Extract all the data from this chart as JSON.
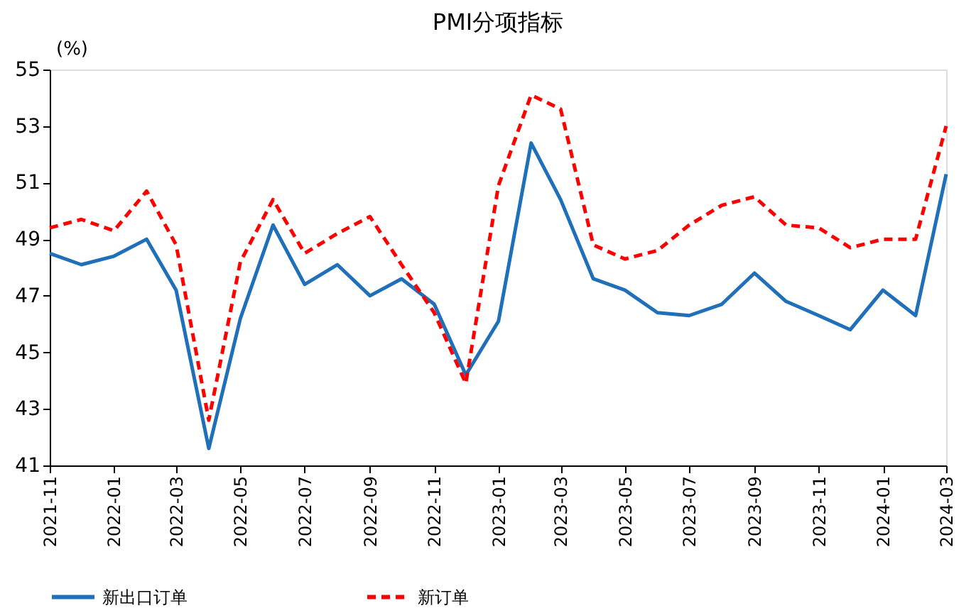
{
  "chart_data": {
    "type": "line",
    "title": "PMI分项指标",
    "ylabel": "(%)",
    "x": [
      "2021-11",
      "2021-12",
      "2022-01",
      "2022-02",
      "2022-03",
      "2022-04",
      "2022-05",
      "2022-06",
      "2022-07",
      "2022-08",
      "2022-09",
      "2022-10",
      "2022-11",
      "2022-12",
      "2023-01",
      "2023-02",
      "2023-03",
      "2023-04",
      "2023-05",
      "2023-06",
      "2023-07",
      "2023-08",
      "2023-09",
      "2023-10",
      "2023-11",
      "2023-12",
      "2024-01",
      "2024-02",
      "2024-03"
    ],
    "series": [
      {
        "name": "新出口订单",
        "color": "#1f70b8",
        "line_style": "solid",
        "values": [
          48.5,
          48.1,
          48.4,
          49.0,
          47.2,
          41.6,
          46.2,
          49.5,
          47.4,
          48.1,
          47.0,
          47.6,
          46.7,
          44.2,
          46.1,
          52.4,
          50.4,
          47.6,
          47.2,
          46.4,
          46.3,
          46.7,
          47.8,
          46.8,
          46.3,
          45.8,
          47.2,
          46.3,
          51.3
        ]
      },
      {
        "name": "新订单",
        "color": "#ff0000",
        "line_style": "dashed",
        "values": [
          49.4,
          49.7,
          49.3,
          50.7,
          48.8,
          42.6,
          48.2,
          50.4,
          48.5,
          49.2,
          49.8,
          48.1,
          46.4,
          43.9,
          50.9,
          54.1,
          53.6,
          48.8,
          48.3,
          48.6,
          49.5,
          50.2,
          50.5,
          49.5,
          49.4,
          48.7,
          49.0,
          49.0,
          53.0
        ]
      }
    ],
    "xlim": [
      "2021-11",
      "2024-03"
    ],
    "xticks": [
      "2021-11",
      "2022-01",
      "2022-03",
      "2022-05",
      "2022-07",
      "2022-09",
      "2022-11",
      "2023-01",
      "2023-03",
      "2023-05",
      "2023-07",
      "2023-09",
      "2023-11",
      "2024-01",
      "2024-03"
    ],
    "ylim": [
      41,
      55
    ],
    "yticks": [
      41,
      43,
      45,
      47,
      49,
      51,
      53,
      55
    ],
    "grid": false,
    "legend": "bottom"
  }
}
